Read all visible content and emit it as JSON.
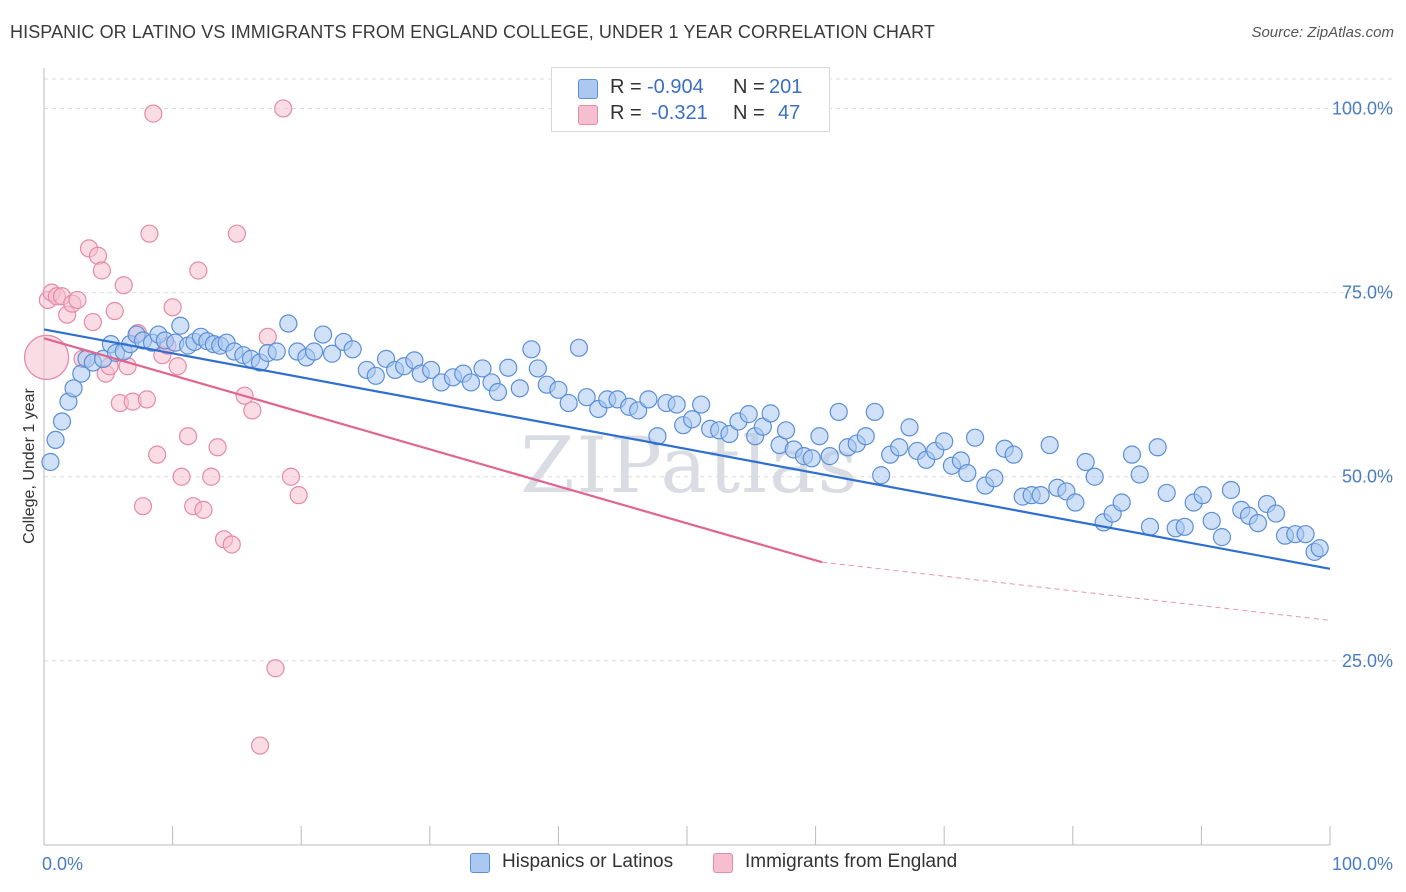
{
  "header": {
    "title": "HISPANIC OR LATINO VS IMMIGRANTS FROM ENGLAND COLLEGE, UNDER 1 YEAR CORRELATION CHART",
    "source": "Source: ZipAtlas.com"
  },
  "legend": {
    "rows": [
      {
        "r_label": "R =",
        "r_value": "-0.904",
        "n_label": "N =",
        "n_value": "201"
      },
      {
        "r_label": "R =",
        "r_value": "-0.321",
        "n_label": "N =",
        "n_value": "47"
      }
    ]
  },
  "bottom_legend": [
    "Hispanics or Latinos",
    "Immigrants from England"
  ],
  "watermark": "ZIPatlas",
  "colors": {
    "blue_fill": "#aac8f0",
    "blue_stroke": "#5b8fd6",
    "blue_line": "#2f6fcf",
    "pink_fill": "#f6bfd0",
    "pink_stroke": "#e58aa8",
    "pink_line": "#e06590",
    "tick_text": "#4a7cc4",
    "grid": "#dcdcdc"
  },
  "chart_data": {
    "type": "scatter",
    "title": "HISPANIC OR LATINO VS IMMIGRANTS FROM ENGLAND COLLEGE, UNDER 1 YEAR CORRELATION CHART",
    "xlabel": "",
    "ylabel": "College, Under 1 year",
    "xlim": [
      0,
      100
    ],
    "ylim": [
      0,
      104
    ],
    "x_tick_labels": [
      "0.0%",
      "100.0%"
    ],
    "y_ticks": [
      25,
      50,
      75,
      100
    ],
    "y_tick_labels": [
      "25.0%",
      "50.0%",
      "75.0%",
      "100.0%"
    ],
    "grid": "horizontal dashed",
    "legend_position": "top-center",
    "series": [
      {
        "name": "Hispanics or Latinos",
        "r": -0.904,
        "n": 201,
        "trend": {
          "x": [
            0,
            100
          ],
          "y": [
            70.0,
            37.5
          ]
        },
        "points": [
          [
            0.5,
            52
          ],
          [
            0.9,
            55
          ],
          [
            1.4,
            57.5
          ],
          [
            1.9,
            60.2
          ],
          [
            2.3,
            62
          ],
          [
            2.9,
            64
          ],
          [
            3.3,
            66
          ],
          [
            3.8,
            65.5
          ],
          [
            4.6,
            66
          ],
          [
            5.2,
            68
          ],
          [
            5.6,
            66.8
          ],
          [
            6.2,
            67
          ],
          [
            6.7,
            68
          ],
          [
            7.2,
            69.3
          ],
          [
            7.7,
            68.5
          ],
          [
            8.4,
            68.2
          ],
          [
            8.9,
            69.3
          ],
          [
            9.4,
            68.5
          ],
          [
            10.2,
            68.2
          ],
          [
            10.6,
            70.5
          ],
          [
            11.2,
            67.8
          ],
          [
            11.7,
            68.3
          ],
          [
            12.2,
            69
          ],
          [
            12.7,
            68.4
          ],
          [
            13.2,
            68
          ],
          [
            13.7,
            67.8
          ],
          [
            14.2,
            68.2
          ],
          [
            14.8,
            67
          ],
          [
            15.5,
            66.5
          ],
          [
            16.1,
            66
          ],
          [
            16.8,
            65.5
          ],
          [
            17.4,
            66.8
          ],
          [
            18.1,
            67
          ],
          [
            19.0,
            70.8
          ],
          [
            19.7,
            67
          ],
          [
            20.4,
            66.2
          ],
          [
            21.0,
            67
          ],
          [
            21.7,
            69.3
          ],
          [
            22.4,
            66.7
          ],
          [
            23.3,
            68.3
          ],
          [
            24.0,
            67.3
          ],
          [
            25.1,
            64.5
          ],
          [
            25.8,
            63.7
          ],
          [
            26.6,
            66
          ],
          [
            27.3,
            64.5
          ],
          [
            28.0,
            65
          ],
          [
            28.8,
            65.8
          ],
          [
            29.3,
            64
          ],
          [
            30.1,
            64.5
          ],
          [
            30.9,
            62.8
          ],
          [
            31.8,
            63.5
          ],
          [
            32.6,
            64
          ],
          [
            33.2,
            62.8
          ],
          [
            34.1,
            64.7
          ],
          [
            34.8,
            62.8
          ],
          [
            35.3,
            61.5
          ],
          [
            36.1,
            64.8
          ],
          [
            37.0,
            62
          ],
          [
            37.9,
            67.3
          ],
          [
            38.4,
            64.7
          ],
          [
            39.1,
            62.5
          ],
          [
            40.0,
            61.8
          ],
          [
            40.8,
            60
          ],
          [
            41.6,
            67.5
          ],
          [
            42.2,
            60.8
          ],
          [
            43.1,
            59.2
          ],
          [
            43.8,
            60.5
          ],
          [
            44.6,
            60.5
          ],
          [
            45.5,
            59.5
          ],
          [
            46.2,
            59
          ],
          [
            47.0,
            60.5
          ],
          [
            47.7,
            55.5
          ],
          [
            48.4,
            60
          ],
          [
            49.2,
            59.8
          ],
          [
            49.7,
            57
          ],
          [
            50.4,
            57.8
          ],
          [
            51.1,
            59.8
          ],
          [
            51.8,
            56.5
          ],
          [
            52.5,
            56.3
          ],
          [
            53.3,
            55.8
          ],
          [
            54.0,
            57.5
          ],
          [
            54.8,
            58.5
          ],
          [
            55.3,
            55.5
          ],
          [
            55.9,
            56.8
          ],
          [
            56.5,
            58.6
          ],
          [
            57.2,
            54.3
          ],
          [
            57.7,
            56.3
          ],
          [
            58.3,
            53.7
          ],
          [
            59.1,
            52.8
          ],
          [
            59.7,
            52.5
          ],
          [
            60.3,
            55.5
          ],
          [
            61.1,
            52.8
          ],
          [
            61.8,
            58.8
          ],
          [
            62.5,
            54
          ],
          [
            63.2,
            54.5
          ],
          [
            63.9,
            55.5
          ],
          [
            64.6,
            58.8
          ],
          [
            65.1,
            50.2
          ],
          [
            65.8,
            53
          ],
          [
            66.5,
            54
          ],
          [
            67.3,
            56.7
          ],
          [
            67.9,
            53.5
          ],
          [
            68.6,
            52.3
          ],
          [
            69.3,
            53.5
          ],
          [
            70.0,
            54.8
          ],
          [
            70.6,
            51.5
          ],
          [
            71.3,
            52.2
          ],
          [
            71.8,
            50.5
          ],
          [
            72.4,
            55.3
          ],
          [
            73.2,
            48.8
          ],
          [
            73.9,
            49.8
          ],
          [
            74.7,
            53.8
          ],
          [
            75.4,
            53
          ],
          [
            76.1,
            47.3
          ],
          [
            76.8,
            47.5
          ],
          [
            77.5,
            47.5
          ],
          [
            78.2,
            54.3
          ],
          [
            78.8,
            48.5
          ],
          [
            79.5,
            48
          ],
          [
            80.2,
            46.5
          ],
          [
            81.0,
            52
          ],
          [
            81.7,
            50
          ],
          [
            82.4,
            43.8
          ],
          [
            83.1,
            45
          ],
          [
            83.8,
            46.5
          ],
          [
            84.6,
            53
          ],
          [
            85.2,
            50.3
          ],
          [
            86.0,
            43.2
          ],
          [
            86.6,
            54
          ],
          [
            87.3,
            47.8
          ],
          [
            88.0,
            43
          ],
          [
            88.7,
            43.2
          ],
          [
            89.4,
            46.5
          ],
          [
            90.1,
            47.5
          ],
          [
            90.8,
            44
          ],
          [
            91.6,
            41.8
          ],
          [
            92.3,
            48.2
          ],
          [
            93.1,
            45.5
          ],
          [
            93.7,
            44.7
          ],
          [
            94.4,
            43.7
          ],
          [
            95.1,
            46.3
          ],
          [
            95.8,
            45
          ],
          [
            96.5,
            42
          ],
          [
            97.3,
            42.2
          ],
          [
            98.1,
            42.2
          ],
          [
            98.8,
            39.8
          ],
          [
            99.2,
            40.3
          ]
        ]
      },
      {
        "name": "Immigrants from England",
        "r": -0.321,
        "n": 47,
        "trend": {
          "x": [
            0,
            60.5
          ],
          "y": [
            68.8,
            38.4
          ]
        },
        "trend_dashed": {
          "x": [
            60.5,
            100
          ],
          "y": [
            38.4,
            30.5
          ]
        },
        "points": [
          [
            0.3,
            74
          ],
          [
            0.6,
            75
          ],
          [
            1.0,
            74.5
          ],
          [
            1.4,
            74.5
          ],
          [
            1.8,
            72
          ],
          [
            2.2,
            73.5
          ],
          [
            2.6,
            74
          ],
          [
            3.0,
            66
          ],
          [
            3.5,
            81
          ],
          [
            3.8,
            71
          ],
          [
            4.2,
            80
          ],
          [
            4.5,
            78
          ],
          [
            4.8,
            64
          ],
          [
            5.1,
            65
          ],
          [
            5.5,
            72.5
          ],
          [
            5.9,
            60
          ],
          [
            6.2,
            76
          ],
          [
            6.5,
            65
          ],
          [
            6.9,
            60.2
          ],
          [
            7.3,
            69.5
          ],
          [
            7.7,
            46
          ],
          [
            8.0,
            60.5
          ],
          [
            8.2,
            83
          ],
          [
            8.5,
            99.3
          ],
          [
            8.8,
            53
          ],
          [
            9.2,
            66.5
          ],
          [
            9.6,
            67.8
          ],
          [
            10.0,
            73
          ],
          [
            10.4,
            65
          ],
          [
            10.7,
            50
          ],
          [
            11.2,
            55.5
          ],
          [
            11.6,
            46
          ],
          [
            12.0,
            78
          ],
          [
            12.4,
            45.5
          ],
          [
            13.0,
            50
          ],
          [
            13.5,
            54
          ],
          [
            14.0,
            41.5
          ],
          [
            14.6,
            40.8
          ],
          [
            15.0,
            83
          ],
          [
            15.6,
            61
          ],
          [
            16.2,
            59
          ],
          [
            16.8,
            13.5
          ],
          [
            17.4,
            69
          ],
          [
            18.0,
            24
          ],
          [
            18.6,
            100
          ],
          [
            19.2,
            50
          ],
          [
            19.8,
            47.5
          ]
        ]
      }
    ]
  }
}
